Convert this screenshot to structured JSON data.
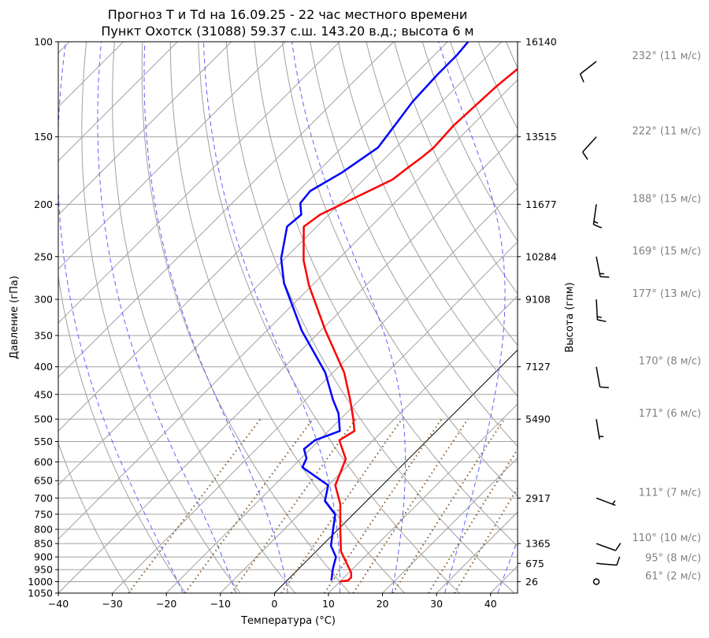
{
  "chart_data": {
    "type": "line",
    "subtype": "skew-t log-p diagram",
    "title": [
      "Прогноз T и Td на 16.09.25 - 22 час местного времени",
      "Пункт Охотск (31088) 59.37 с.ш. 143.20 в.д.; высота 6 м"
    ],
    "xlabel": "Температура (°C)",
    "ylabel": "Давление (гПа)",
    "y2label": "Высота (гпм)",
    "xlim": [
      -40,
      45
    ],
    "ylim": [
      1050,
      100
    ],
    "x_ticks": [
      -40,
      -30,
      -20,
      -10,
      0,
      10,
      20,
      30,
      40
    ],
    "y_ticks": [
      100,
      150,
      200,
      250,
      300,
      350,
      400,
      450,
      500,
      550,
      600,
      650,
      700,
      750,
      800,
      850,
      900,
      950,
      1000,
      1050
    ],
    "height_ticks": [
      {
        "p": 100,
        "label": "16140"
      },
      {
        "p": 150,
        "label": "13515"
      },
      {
        "p": 200,
        "label": "11677"
      },
      {
        "p": 250,
        "label": "10284"
      },
      {
        "p": 300,
        "label": "9108"
      },
      {
        "p": 400,
        "label": "7127"
      },
      {
        "p": 500,
        "label": "5490"
      },
      {
        "p": 700,
        "label": "2917"
      },
      {
        "p": 850,
        "label": "1365"
      },
      {
        "p": 925,
        "label": "675"
      },
      {
        "p": 1000,
        "label": "26"
      }
    ],
    "grid": true,
    "series": [
      {
        "name": "T",
        "color": "#ff0000",
        "p": [
          999,
          995,
          982,
          962,
          879,
          795,
          718,
          663,
          593,
          547,
          526,
          500,
          460,
          410,
          343,
          283,
          254,
          220,
          209,
          180,
          172,
          164,
          157,
          143,
          121,
          112
        ],
        "t": [
          10.0,
          11.3,
          11.3,
          10.4,
          4.6,
          0.1,
          -4.3,
          -8.7,
          -11.6,
          -16.3,
          -15.2,
          -17.6,
          -21.8,
          -27.9,
          -39.1,
          -50.5,
          -56.2,
          -62.4,
          -61.6,
          -54.7,
          -54.1,
          -53.4,
          -53.0,
          -53.4,
          -52.7,
          -52.0
        ]
      },
      {
        "name": "Td",
        "color": "#0000ff",
        "p": [
          995,
          946,
          900,
          858,
          803,
          751,
          709,
          663,
          614,
          591,
          568,
          547,
          526,
          488,
          460,
          410,
          343,
          280,
          252,
          220,
          209,
          199,
          189,
          175,
          157,
          143,
          129,
          115,
          106,
          100
        ],
        "t": [
          8.2,
          6.3,
          4.7,
          1.7,
          -0.8,
          -3.3,
          -7.7,
          -10.0,
          -18.1,
          -19.0,
          -21.2,
          -20.8,
          -17.9,
          -21.4,
          -25.0,
          -31.4,
          -43.5,
          -55.6,
          -60.7,
          -65.5,
          -65.1,
          -67.4,
          -67.8,
          -65.4,
          -63.3,
          -64.3,
          -65.4,
          -65.8,
          -65.8,
          -66.2
        ]
      }
    ],
    "reference_lines": {
      "zero_isotherm_color": "#000000",
      "isotherm_step": 10,
      "dry_adiabats_theta_c": [
        -30,
        -20,
        -10,
        0,
        10,
        20,
        30,
        40,
        50,
        60,
        70,
        80,
        90,
        100,
        110,
        120,
        130,
        140,
        150,
        160,
        170,
        180,
        190,
        200
      ],
      "moist_adiabats_t0_c": [
        -20,
        -10,
        0,
        10,
        20,
        30,
        40
      ],
      "mixing_ratios_g_per_kg": [
        0.4,
        1,
        2,
        4,
        7,
        10,
        16,
        24,
        32
      ]
    },
    "winds": [
      {
        "p": 100,
        "dir": 232,
        "speed": 11,
        "label": "232° (11 м/с)"
      },
      {
        "p": 150,
        "dir": 222,
        "speed": 11,
        "label": "222° (11 м/с)"
      },
      {
        "p": 200,
        "dir": 188,
        "speed": 15,
        "label": "188° (15 м/с)"
      },
      {
        "p": 250,
        "dir": 169,
        "speed": 15,
        "label": "169° (15 м/с)"
      },
      {
        "p": 300,
        "dir": 177,
        "speed": 13,
        "label": "177° (13 м/с)"
      },
      {
        "p": 400,
        "dir": 170,
        "speed": 8,
        "label": "170° (8 м/с)"
      },
      {
        "p": 500,
        "dir": 171,
        "speed": 6,
        "label": "171° (6 м/с)"
      },
      {
        "p": 700,
        "dir": 111,
        "speed": 7,
        "label": "111° (7 м/с)"
      },
      {
        "p": 850,
        "dir": 110,
        "speed": 10,
        "label": "110° (10 м/с)"
      },
      {
        "p": 925,
        "dir": 95,
        "speed": 8,
        "label": "95° (8 м/с)"
      },
      {
        "p": 1000,
        "dir": 61,
        "speed": 2,
        "label": "61° (2 м/с)"
      }
    ]
  }
}
